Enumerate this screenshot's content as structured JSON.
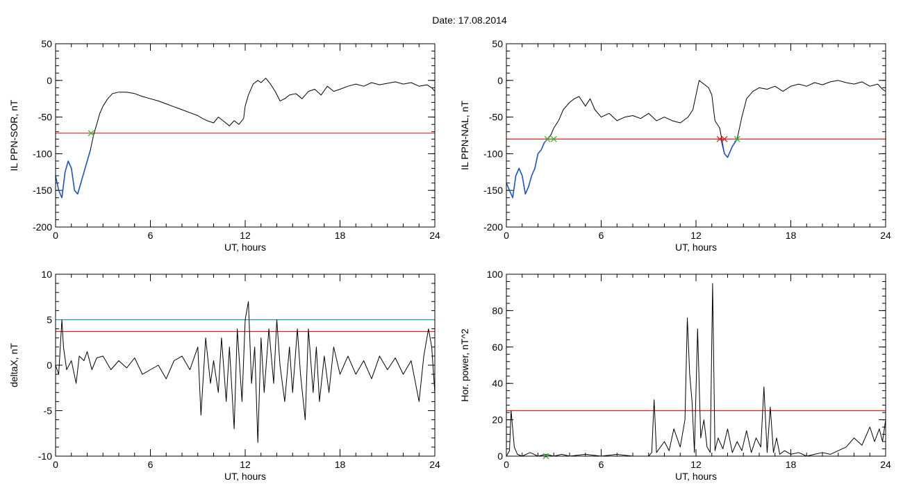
{
  "figure": {
    "title": "Date:  17.08.2014"
  },
  "chart_data": [
    {
      "id": "sor",
      "type": "line",
      "title": "",
      "xlabel": "UT, hours",
      "ylabel": "IL PPN-SOR, nT",
      "xlim": [
        0,
        24
      ],
      "ylim": [
        -200,
        50
      ],
      "xticks": [
        0,
        6,
        12,
        18,
        24
      ],
      "yticks": [
        -200,
        -150,
        -100,
        -50,
        0,
        50
      ],
      "threshold": -72,
      "series": [
        {
          "color": "#000000",
          "x": [
            0,
            0.2,
            0.4,
            0.6,
            0.8,
            1.0,
            1.2,
            1.4,
            1.6,
            1.8,
            2.0,
            2.2,
            2.4,
            2.6,
            2.8,
            3.0,
            3.3,
            3.6,
            4.0,
            4.5,
            5.0,
            5.5,
            6.0,
            6.5,
            7.0,
            7.5,
            8.0,
            8.5,
            9.0,
            9.3,
            9.6,
            10.0,
            10.3,
            10.6,
            11.0,
            11.3,
            11.6,
            11.9,
            12.0,
            12.2,
            12.5,
            12.8,
            13.0,
            13.3,
            13.6,
            13.9,
            14.2,
            14.5,
            14.8,
            15.2,
            15.6,
            16.0,
            16.4,
            16.8,
            17.2,
            17.6,
            18.0,
            18.5,
            19.0,
            19.5,
            20.0,
            20.5,
            21.0,
            21.5,
            22.0,
            22.5,
            23.0,
            23.5,
            23.8,
            24.0
          ],
          "y": [
            -130,
            -150,
            -160,
            -125,
            -110,
            -120,
            -150,
            -155,
            -140,
            -125,
            -110,
            -95,
            -75,
            -60,
            -45,
            -35,
            -25,
            -18,
            -16,
            -16,
            -18,
            -22,
            -25,
            -28,
            -32,
            -36,
            -40,
            -44,
            -48,
            -52,
            -55,
            -58,
            -50,
            -55,
            -62,
            -55,
            -60,
            -52,
            -35,
            -20,
            -5,
            0,
            -3,
            3,
            -5,
            -15,
            -28,
            -25,
            -20,
            -18,
            -25,
            -15,
            -12,
            -20,
            -8,
            -15,
            -12,
            -8,
            -5,
            -8,
            -3,
            -6,
            -4,
            -2,
            -5,
            -3,
            -8,
            -6,
            -10,
            -15
          ]
        },
        {
          "color": "#1f4fd8",
          "x": [
            0,
            0.2,
            0.4,
            0.6,
            0.8,
            1.0,
            1.2,
            1.4,
            1.6,
            1.8,
            2.0,
            2.2
          ],
          "y": [
            -130,
            -150,
            -160,
            -125,
            -110,
            -120,
            -150,
            -155,
            -140,
            -125,
            -110,
            -95
          ]
        }
      ],
      "markers": [
        {
          "x": 2.25,
          "y": -72,
          "color": "#2db82d"
        }
      ]
    },
    {
      "id": "nal",
      "type": "line",
      "title": "",
      "xlabel": "UT, hours",
      "ylabel": "IL PPN-NAL, nT",
      "xlim": [
        0,
        24
      ],
      "ylim": [
        -200,
        50
      ],
      "xticks": [
        0,
        6,
        12,
        18,
        24
      ],
      "yticks": [
        -200,
        -150,
        -100,
        -50,
        0,
        50
      ],
      "threshold": -80,
      "series": [
        {
          "color": "#000000",
          "x": [
            0,
            0.2,
            0.4,
            0.6,
            0.8,
            1.0,
            1.2,
            1.4,
            1.6,
            1.8,
            2.0,
            2.2,
            2.4,
            2.6,
            2.8,
            3.0,
            3.3,
            3.6,
            4.0,
            4.3,
            4.6,
            5.0,
            5.3,
            5.6,
            6.0,
            6.5,
            7.0,
            7.5,
            8.0,
            8.5,
            9.0,
            9.5,
            10.0,
            10.5,
            11.0,
            11.5,
            11.8,
            12.0,
            12.2,
            12.5,
            12.8,
            13.0,
            13.2,
            13.5,
            13.8,
            14.0,
            14.3,
            14.6,
            14.9,
            15.2,
            15.6,
            16.0,
            16.5,
            17.0,
            17.5,
            18.0,
            18.5,
            19.0,
            19.5,
            20.0,
            20.5,
            21.0,
            21.5,
            22.0,
            22.5,
            23.0,
            23.5,
            23.8,
            24.0
          ],
          "y": [
            -140,
            -150,
            -160,
            -130,
            -120,
            -130,
            -155,
            -145,
            -130,
            -120,
            -100,
            -95,
            -85,
            -80,
            -75,
            -65,
            -55,
            -40,
            -30,
            -25,
            -22,
            -35,
            -25,
            -40,
            -50,
            -45,
            -55,
            -50,
            -48,
            -52,
            -45,
            -55,
            -50,
            -55,
            -58,
            -50,
            -40,
            -20,
            0,
            -5,
            -10,
            -20,
            -55,
            -65,
            -100,
            -105,
            -90,
            -80,
            -50,
            -25,
            -15,
            -10,
            -12,
            -8,
            -15,
            -8,
            -5,
            -8,
            -3,
            -6,
            -2,
            0,
            -3,
            -5,
            -2,
            -8,
            -5,
            -12,
            -15
          ]
        },
        {
          "color": "#1f4fd8",
          "x": [
            0,
            0.2,
            0.4,
            0.6,
            0.8,
            1.0,
            1.2,
            1.4,
            1.6,
            1.8,
            2.0,
            2.2,
            2.4,
            2.6,
            2.8
          ],
          "y": [
            -140,
            -150,
            -160,
            -130,
            -120,
            -130,
            -155,
            -145,
            -130,
            -120,
            -100,
            -95,
            -85,
            -80,
            -75
          ]
        },
        {
          "color": "#1f4fd8",
          "x": [
            13.6,
            13.8,
            14.0,
            14.3,
            14.6
          ],
          "y": [
            -82,
            -100,
            -105,
            -90,
            -80
          ]
        }
      ],
      "markers": [
        {
          "x": 2.6,
          "y": -80,
          "color": "#2db82d"
        },
        {
          "x": 3.0,
          "y": -80,
          "color": "#2db82d"
        },
        {
          "x": 13.5,
          "y": -80,
          "color": "#d62020"
        },
        {
          "x": 13.8,
          "y": -80,
          "color": "#d62020"
        },
        {
          "x": 14.6,
          "y": -80,
          "color": "#2db82d"
        }
      ]
    },
    {
      "id": "deltax",
      "type": "line",
      "title": "",
      "xlabel": "UT, hours",
      "ylabel": "deltaX, nT",
      "xlim": [
        0,
        24
      ],
      "ylim": [
        -10,
        10
      ],
      "xticks": [
        0,
        6,
        12,
        18,
        24
      ],
      "yticks": [
        -10,
        -5,
        0,
        5,
        10
      ],
      "threshold": 3.7,
      "threshold2": 5.0,
      "series": [
        {
          "color": "#000000",
          "x": [
            0,
            0.2,
            0.4,
            0.5,
            0.7,
            1.0,
            1.3,
            1.5,
            1.8,
            2.0,
            2.3,
            2.6,
            3.0,
            3.5,
            4.0,
            4.5,
            5.0,
            5.5,
            6.0,
            6.5,
            7.0,
            7.5,
            8.0,
            8.5,
            9.0,
            9.2,
            9.5,
            9.8,
            10.0,
            10.3,
            10.5,
            10.8,
            11.0,
            11.3,
            11.5,
            11.8,
            12.0,
            12.2,
            12.4,
            12.6,
            12.8,
            13.0,
            13.2,
            13.5,
            13.8,
            14.0,
            14.2,
            14.5,
            14.8,
            15.0,
            15.3,
            15.5,
            15.8,
            16.0,
            16.3,
            16.5,
            16.7,
            17.0,
            17.3,
            17.6,
            18.0,
            18.5,
            19.0,
            19.5,
            20.0,
            20.5,
            21.0,
            21.5,
            22.0,
            22.5,
            23.0,
            23.3,
            23.6,
            23.8,
            24.0
          ],
          "y": [
            0,
            -1,
            5,
            2,
            -0.5,
            0.5,
            -2,
            1,
            0.5,
            1.5,
            -0.5,
            0.8,
            1,
            -0.5,
            0.5,
            -0.3,
            0.8,
            -1,
            -0.5,
            0,
            -1.5,
            0.5,
            1,
            -0.5,
            2,
            -5.5,
            3,
            -2,
            0.5,
            -3,
            3,
            -4,
            2,
            -7,
            4,
            -4,
            5,
            7,
            -2,
            2,
            -8.5,
            3,
            -3,
            4,
            -2,
            5,
            0,
            -4,
            2,
            -3,
            4,
            -1,
            -6,
            4,
            -3,
            2,
            -4,
            1,
            -3,
            2,
            -1,
            1,
            -1,
            0.5,
            -1.5,
            1,
            -0.5,
            0.8,
            -1,
            0.5,
            -4,
            1,
            4,
            2,
            -3
          ]
        }
      ],
      "markers": []
    },
    {
      "id": "power",
      "type": "line",
      "title": "",
      "xlabel": "UT, hours",
      "ylabel": "Hor. power, nT^2",
      "xlim": [
        0,
        24
      ],
      "ylim": [
        0,
        100
      ],
      "xticks": [
        0,
        6,
        12,
        18,
        24
      ],
      "yticks": [
        0,
        20,
        40,
        60,
        80,
        100
      ],
      "threshold": 25,
      "series": [
        {
          "color": "#000000",
          "x": [
            0,
            0.2,
            0.3,
            0.5,
            0.7,
            1.0,
            1.5,
            2.0,
            2.5,
            3.0,
            3.5,
            4.0,
            5.0,
            6.0,
            7.0,
            8.0,
            9.0,
            9.2,
            9.35,
            9.5,
            10.0,
            10.3,
            10.6,
            11.0,
            11.3,
            11.45,
            11.6,
            11.75,
            11.9,
            12.1,
            12.3,
            12.5,
            12.7,
            12.9,
            13.05,
            13.2,
            13.4,
            13.7,
            14.0,
            14.3,
            14.6,
            14.9,
            15.2,
            15.5,
            15.8,
            16.1,
            16.3,
            16.5,
            16.7,
            16.9,
            17.1,
            17.3,
            17.6,
            18.0,
            18.5,
            19.0,
            19.5,
            20.0,
            20.5,
            21.0,
            21.5,
            22.0,
            22.5,
            23.0,
            23.3,
            23.6,
            23.8,
            24.0
          ],
          "y": [
            0,
            3,
            25,
            5,
            1,
            0,
            2,
            0,
            1,
            0,
            1,
            0,
            1,
            0,
            1,
            0,
            0,
            2,
            31,
            2,
            8,
            3,
            15,
            5,
            20,
            76,
            45,
            30,
            2,
            70,
            10,
            20,
            5,
            2,
            95,
            3,
            10,
            4,
            15,
            2,
            8,
            3,
            14,
            2,
            10,
            5,
            38,
            2,
            27,
            2,
            10,
            1,
            3,
            1,
            2,
            0,
            1,
            2,
            1,
            3,
            5,
            10,
            6,
            16,
            8,
            15,
            8,
            20
          ]
        }
      ],
      "markers": [
        {
          "x": 2.5,
          "y": 0,
          "color": "#2db82d"
        }
      ]
    }
  ]
}
